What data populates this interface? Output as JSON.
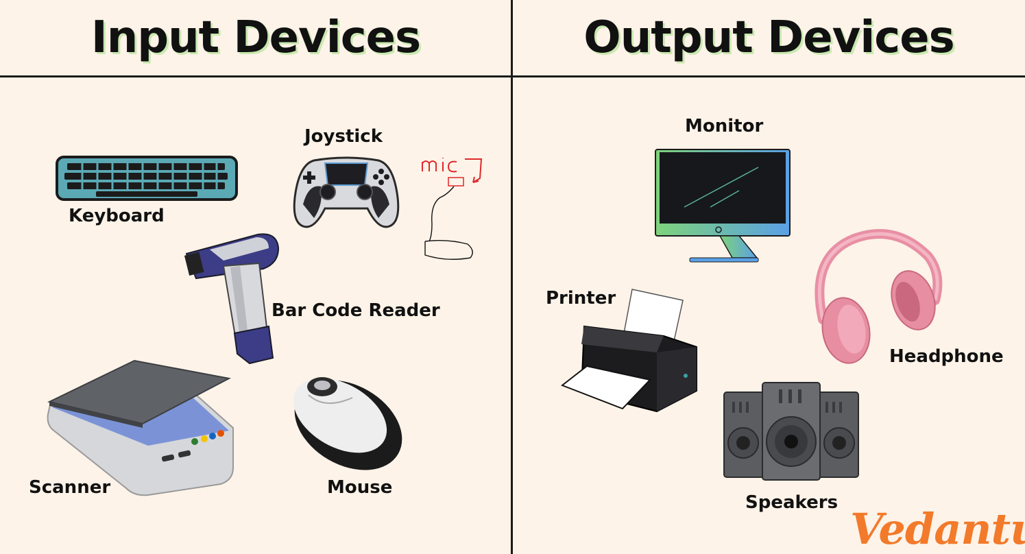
{
  "headers": {
    "input": "Input Devices",
    "output": "Output Devices"
  },
  "input_devices": {
    "keyboard": "Keyboard",
    "joystick": "Joystick",
    "mic_annotation": "mic",
    "bar_code_reader": "Bar Code Reader",
    "scanner": "Scanner",
    "mouse": "Mouse"
  },
  "output_devices": {
    "monitor": "Monitor",
    "printer": "Printer",
    "headphone": "Headphone",
    "speakers": "Speakers"
  },
  "logo": "Vedantu",
  "colors": {
    "background": "#fdf3e8",
    "header_shadow": "#c9e8b0",
    "logo": "#f27a2a",
    "annotation": "#e0282b"
  }
}
